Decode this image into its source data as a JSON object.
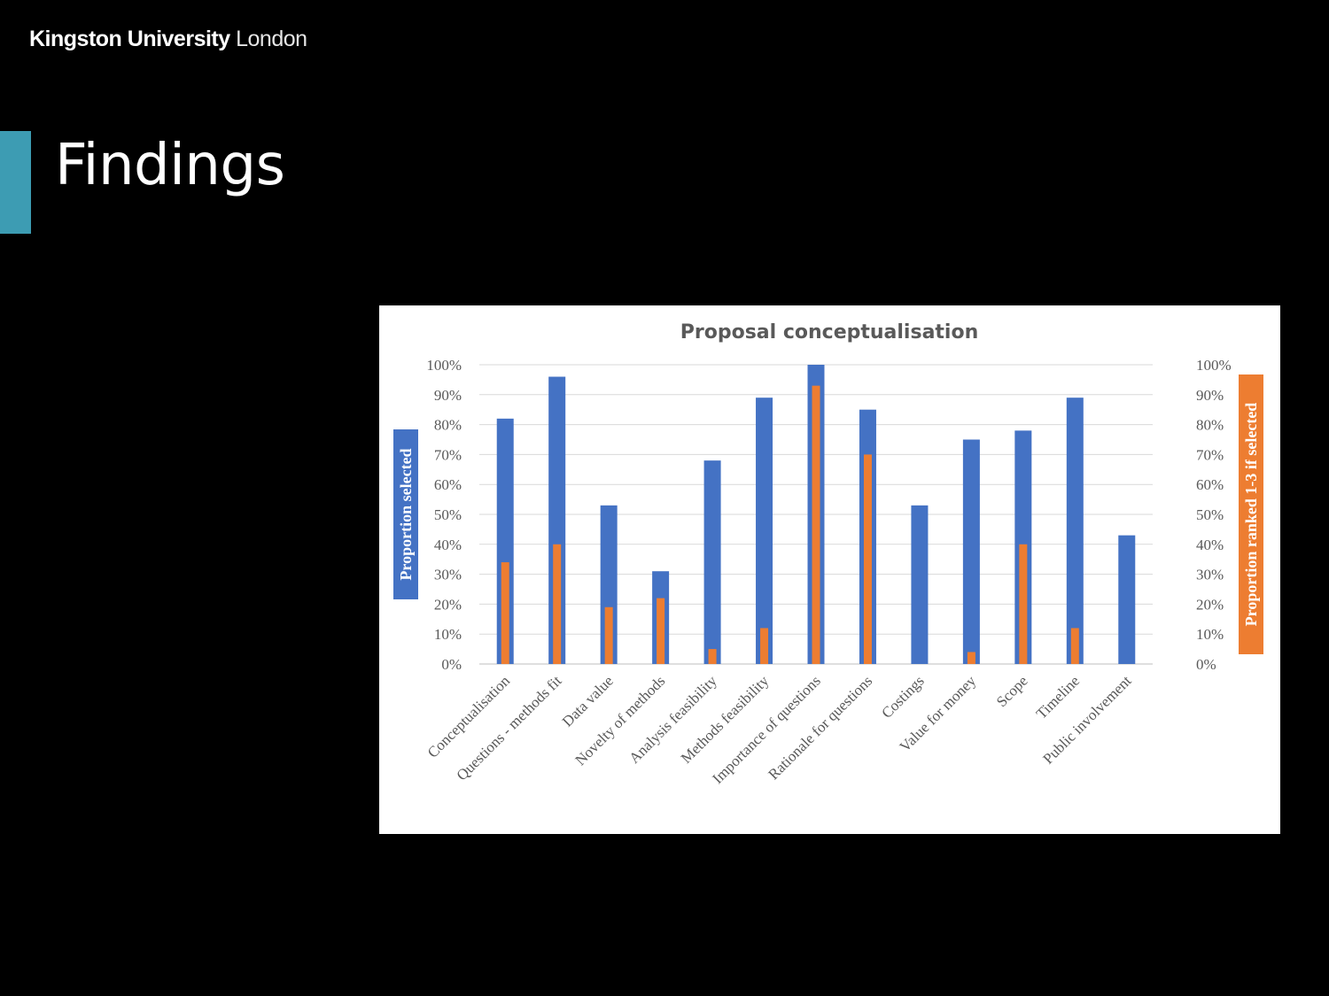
{
  "slide": {
    "logo_bold": "Kingston University",
    "logo_light": "London",
    "title": "Findings",
    "accent_color": "#3d9cb3"
  },
  "chart_data": {
    "type": "bar",
    "title": "Proposal conceptualisation",
    "categories": [
      "Conceptualisation",
      "Questions - methods fit",
      "Data value",
      "Novelty of methods",
      "Analysis feasibility",
      "Methods feasibility",
      "Importance of questions",
      "Rationale for questions",
      "Costings",
      "Value for money",
      "Scope",
      "Timeline",
      "Public involvement"
    ],
    "series": [
      {
        "name": "Proportion selected",
        "axis": "left",
        "color": "#4472c4",
        "values": [
          82,
          96,
          53,
          31,
          68,
          89,
          100,
          85,
          53,
          75,
          78,
          89,
          43
        ]
      },
      {
        "name": "Proportion ranked 1-3 if selected",
        "axis": "right",
        "color": "#ed7d31",
        "values": [
          34,
          40,
          19,
          22,
          5,
          12,
          93,
          70,
          0,
          4,
          40,
          12,
          0
        ]
      }
    ],
    "ylabel": "Proportion selected",
    "y2label": "Proportion ranked 1-3 if selected",
    "ylim": [
      0,
      100
    ],
    "y2lim": [
      0,
      100
    ],
    "yticks": [
      "0%",
      "10%",
      "20%",
      "30%",
      "40%",
      "50%",
      "60%",
      "70%",
      "80%",
      "90%",
      "100%"
    ],
    "grid": true,
    "legend": "none"
  }
}
